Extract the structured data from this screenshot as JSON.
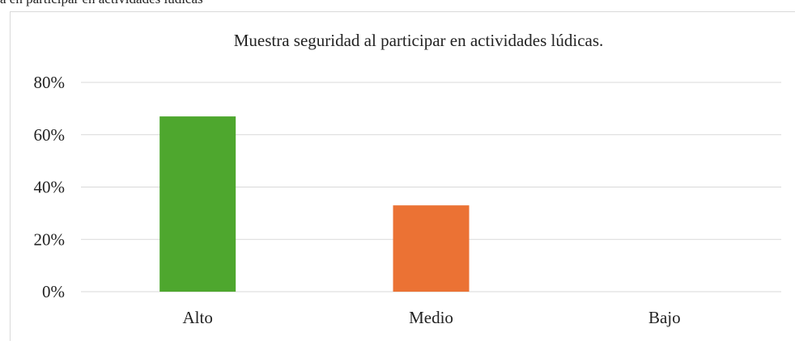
{
  "caption": "a en participar en actividades lúdicas",
  "chart_data": {
    "type": "bar",
    "title": "Muestra seguridad al participar en actividades lúdicas.",
    "categories": [
      "Alto",
      "Medio",
      "Bajo"
    ],
    "values": [
      67,
      33,
      0
    ],
    "colors": [
      "#4ea72e",
      "#eb7234",
      "#4472c4"
    ],
    "ylim": [
      0,
      80
    ],
    "yticks": [
      {
        "value": 0,
        "label": "0%"
      },
      {
        "value": 20,
        "label": "20%"
      },
      {
        "value": 40,
        "label": "40%"
      },
      {
        "value": 60,
        "label": "60%"
      },
      {
        "value": 80,
        "label": "80%"
      }
    ],
    "grid": true
  }
}
